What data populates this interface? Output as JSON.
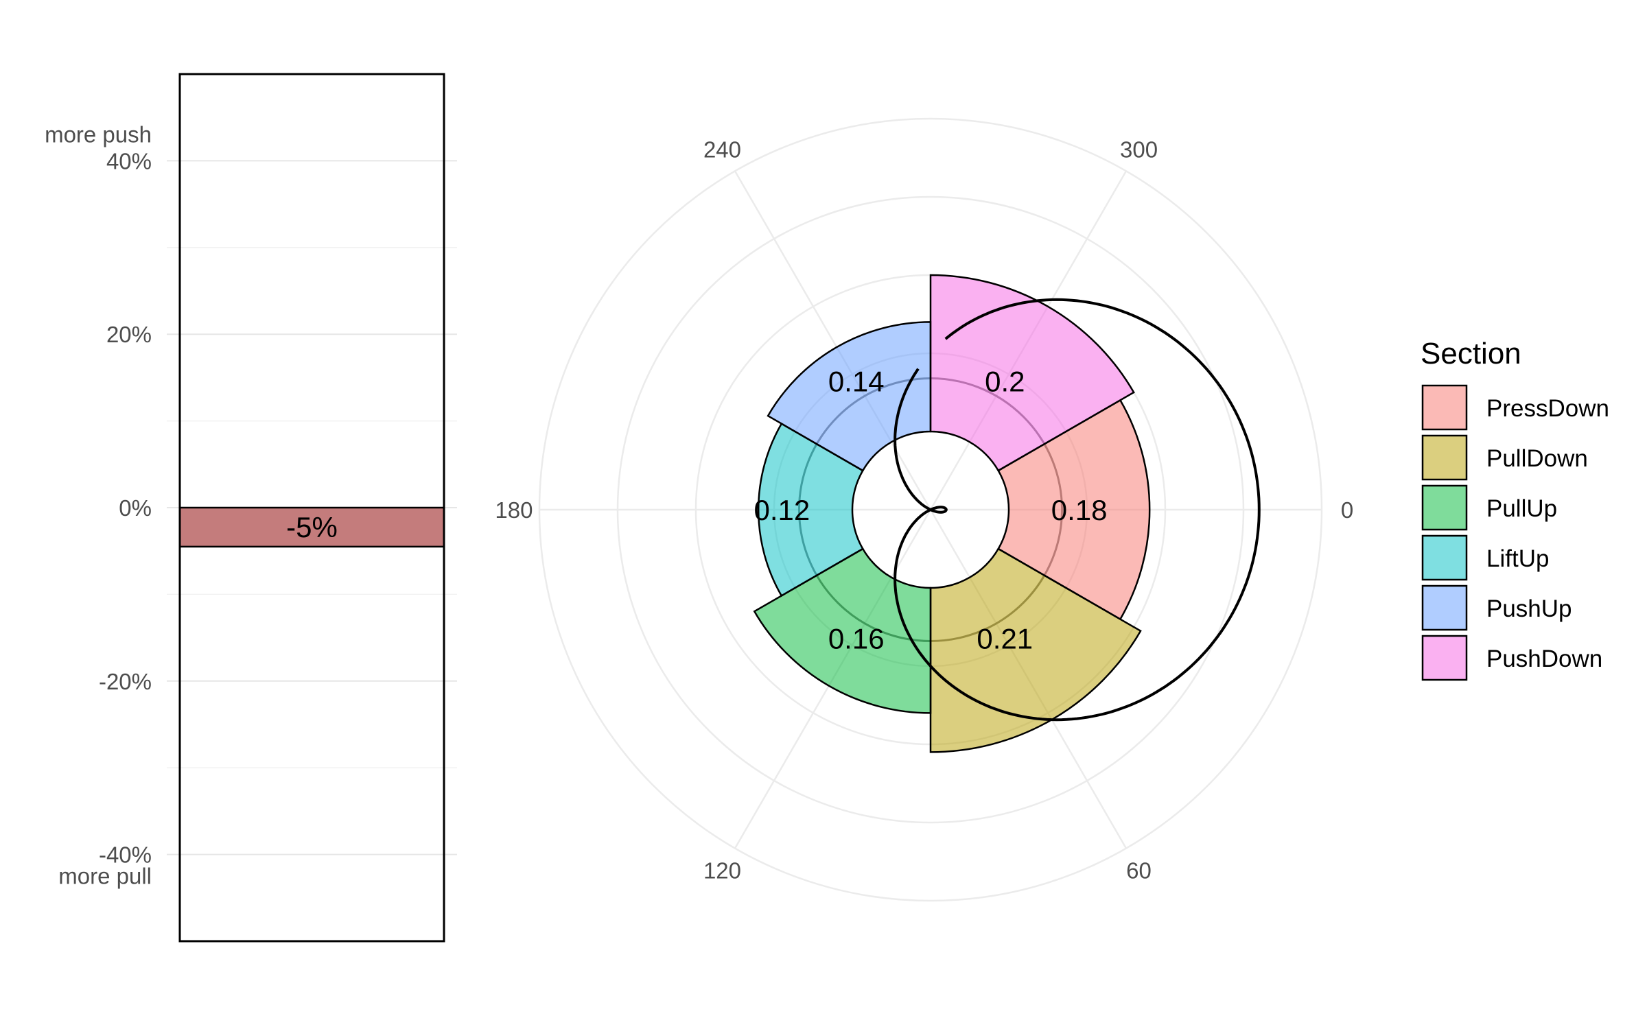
{
  "chart_data": [
    {
      "type": "bar",
      "title": "",
      "xlabel": "",
      "ylabel": "",
      "ylim": [
        -0.5,
        0.5
      ],
      "y_ticks": [
        {
          "value": 0.4,
          "label": "40%",
          "extra": "more push"
        },
        {
          "value": 0.2,
          "label": "20%",
          "extra": ""
        },
        {
          "value": 0.0,
          "label": "0%",
          "extra": ""
        },
        {
          "value": -0.2,
          "label": "-20%",
          "extra": ""
        },
        {
          "value": -0.4,
          "label": "-40%",
          "extra": "more pull"
        }
      ],
      "values": [
        -0.045
      ],
      "value_label": "-5%",
      "bar_color": "#c47c7c",
      "grid": true
    },
    {
      "type": "bar",
      "coord": "polar",
      "title": "",
      "angle_ticks": [
        {
          "value": 0,
          "label": "0"
        },
        {
          "value": 60,
          "label": "60"
        },
        {
          "value": 120,
          "label": "120"
        },
        {
          "value": 180,
          "label": "180"
        },
        {
          "value": 240,
          "label": "240"
        },
        {
          "value": 300,
          "label": "300"
        }
      ],
      "rlim": [
        0,
        0.5
      ],
      "hole_radius": 0.1,
      "sections": [
        {
          "name": "PressDown",
          "value": 0.18,
          "label": "0.18",
          "color": "#f8766d",
          "start_angle": -30,
          "end_angle": 30
        },
        {
          "name": "PullDown",
          "value": 0.21,
          "label": "0.21",
          "color": "#b79f00",
          "start_angle": 30,
          "end_angle": 90
        },
        {
          "name": "PullUp",
          "value": 0.16,
          "label": "0.16",
          "color": "#00ba38",
          "start_angle": 90,
          "end_angle": 150
        },
        {
          "name": "LiftUp",
          "value": 0.12,
          "label": "0.12",
          "color": "#00bfc4",
          "start_angle": 150,
          "end_angle": 210
        },
        {
          "name": "PushUp",
          "value": 0.14,
          "label": "0.14",
          "color": "#619cff",
          "start_angle": 210,
          "end_angle": 270
        },
        {
          "name": "PushDown",
          "value": 0.2,
          "label": "0.2",
          "color": "#f564e3",
          "start_angle": 270,
          "end_angle": 330
        }
      ],
      "reference_circle": 0.168,
      "curve": {
        "a": 0.2,
        "b": 0.22,
        "theta_min": -85,
        "theta_max": 265
      },
      "legend": {
        "title": "Section",
        "position": "right"
      }
    }
  ]
}
